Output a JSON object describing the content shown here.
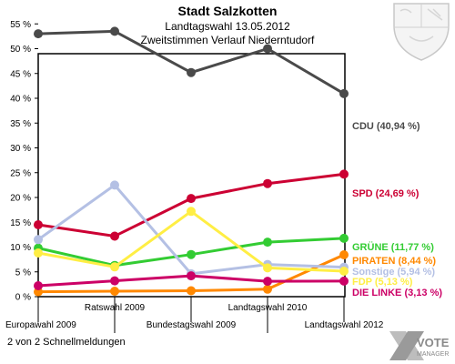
{
  "header": {
    "title": "Stadt Salzkotten",
    "subtitle": "Landtagswahl 13.05.2012",
    "description": "Zweitstimmen Verlauf Niederntudorf"
  },
  "footer": {
    "note": "2 von 2 Schnellmeldungen",
    "brand_line1": "VOTE",
    "brand_line2": "MANAGER"
  },
  "chart_data": {
    "type": "line",
    "title": "Stadt Salzkotten",
    "x": [
      "Europawahl 2009",
      "Ratswahl 2009",
      "Bundestagswahl 2009",
      "Landtagswahl 2010",
      "Landtagswahl 2012"
    ],
    "ytick_labels": [
      "0 %",
      "5 %",
      "10 %",
      "15 %",
      "20 %",
      "25 %",
      "30 %",
      "35 %",
      "40 %",
      "45 %",
      "50 %",
      "55 %"
    ],
    "ylim": [
      0,
      56
    ],
    "grid": false,
    "legend": "right-end labels",
    "series": [
      {
        "name": "CDU",
        "label": "CDU (40,94 %)",
        "color": "#4a4a4a",
        "values": [
          53.0,
          53.5,
          45.2,
          50.0,
          40.94
        ]
      },
      {
        "name": "SPD",
        "label": "SPD (24,69 %)",
        "color": "#cc0033",
        "values": [
          14.5,
          12.2,
          19.8,
          22.8,
          24.69
        ]
      },
      {
        "name": "GRÜNE",
        "label": "GRÜNE (11,77 %)",
        "color": "#33cc33",
        "values": [
          9.8,
          6.3,
          8.5,
          11.0,
          11.77
        ]
      },
      {
        "name": "PIRATEN",
        "label": "PIRATEN (8,44 %)",
        "color": "#ff8800",
        "values": [
          1.0,
          1.1,
          1.2,
          1.5,
          8.44
        ]
      },
      {
        "name": "Sonstige",
        "label": "Sonstige (5,94 %)",
        "color": "#b4c0e4",
        "values": [
          11.5,
          22.5,
          4.6,
          6.5,
          5.94
        ]
      },
      {
        "name": "FDP",
        "label": "FDP (5,13 %)",
        "color": "#ffee44",
        "values": [
          8.8,
          6.0,
          17.2,
          5.8,
          5.13
        ]
      },
      {
        "name": "DIE LINKE",
        "label": "DIE LINKE (3,13 %)",
        "color": "#cc0066",
        "values": [
          2.2,
          3.2,
          4.2,
          3.1,
          3.13
        ]
      }
    ]
  }
}
